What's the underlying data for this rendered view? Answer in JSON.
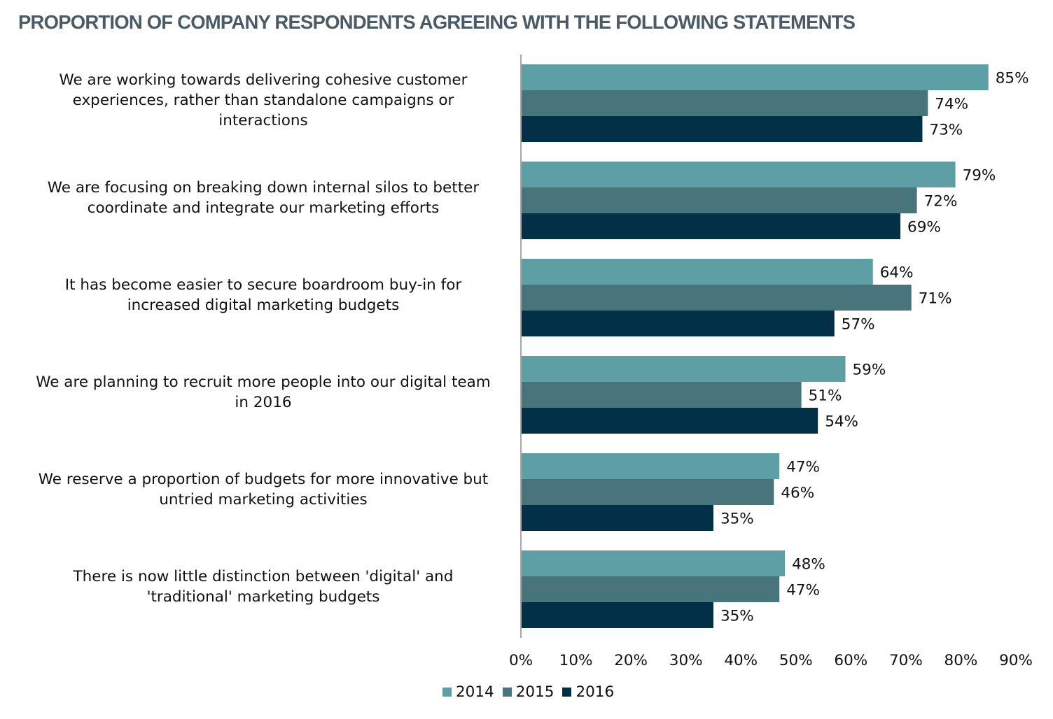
{
  "chart_data": {
    "type": "bar",
    "orientation": "horizontal",
    "title": "PROPORTION OF COMPANY RESPONDENTS AGREEING WITH THE FOLLOWING STATEMENTS",
    "categories": [
      "We are working towards delivering cohesive customer experiences, rather than standalone campaigns or interactions",
      "We are focusing on breaking down internal silos to better coordinate and integrate our marketing efforts",
      "It has become easier to secure boardroom buy-in for increased digital marketing budgets",
      "We are planning to recruit more people into our digital team in 2016",
      "We reserve a proportion of budgets for more innovative but untried marketing activities",
      "There is now little distinction between 'digital' and 'traditional' marketing budgets"
    ],
    "category_lines": [
      [
        "We are working towards delivering cohesive customer",
        "experiences, rather than standalone campaigns or",
        "interactions"
      ],
      [
        "We are focusing on breaking down internal silos to better",
        "coordinate and integrate our marketing efforts"
      ],
      [
        "It has become easier to secure boardroom buy-in for",
        "increased digital marketing budgets"
      ],
      [
        "We are planning to recruit more people into our digital team",
        "in 2016"
      ],
      [
        "We reserve a proportion of budgets for more innovative but",
        "untried marketing activities"
      ],
      [
        "There is now little distinction between 'digital' and",
        "'traditional' marketing budgets"
      ]
    ],
    "series": [
      {
        "name": "2014",
        "color": "#5e9ea5",
        "values": [
          85,
          79,
          64,
          59,
          47,
          48
        ]
      },
      {
        "name": "2015",
        "color": "#47757b",
        "values": [
          74,
          72,
          71,
          51,
          46,
          47
        ]
      },
      {
        "name": "2016",
        "color": "#023047",
        "values": [
          73,
          69,
          57,
          54,
          35,
          35
        ]
      }
    ],
    "xlim": [
      0,
      90
    ],
    "xticks": [
      "0%",
      "10%",
      "20%",
      "30%",
      "40%",
      "50%",
      "60%",
      "70%",
      "80%",
      "90%"
    ],
    "value_suffix": "%",
    "legend_position": "bottom",
    "grid": false
  }
}
